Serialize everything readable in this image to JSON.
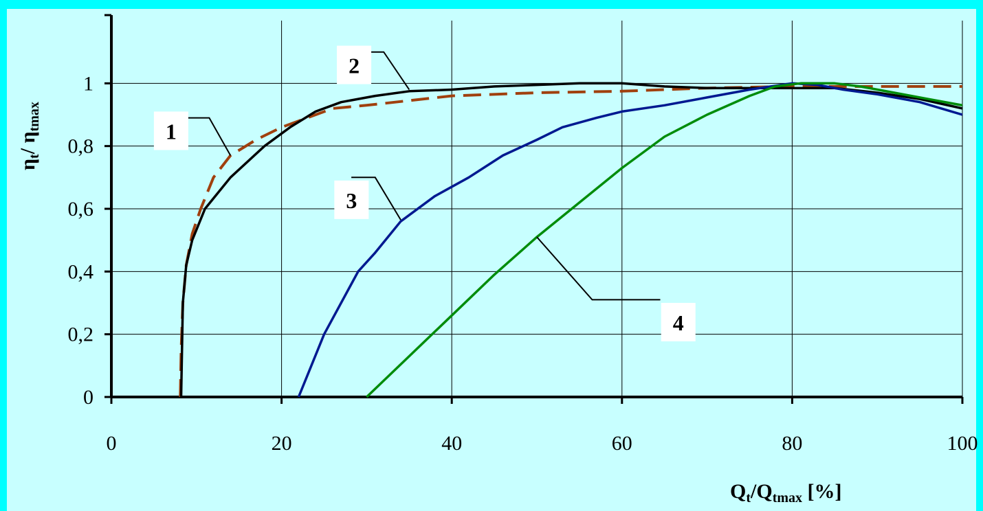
{
  "chart_data": {
    "type": "line",
    "title": "",
    "xlabel": "Q",
    "xlabel_sub": "t",
    "xlabel_mid": "/Q",
    "xlabel_sub2": "tmax",
    "xlabel_tail": " [%]",
    "ylabel": "η",
    "ylabel_sub": "t",
    "ylabel_mid": "/ η",
    "ylabel_sub2": "tmax",
    "xlim": [
      0,
      100
    ],
    "ylim": [
      0,
      1.2
    ],
    "x_ticks": [
      0,
      20,
      40,
      60,
      80,
      100
    ],
    "x_tick_labels": [
      "0",
      "20",
      "40",
      "60",
      "80",
      "100"
    ],
    "y_ticks": [
      0,
      0.2,
      0.4,
      0.6,
      0.8,
      1.0
    ],
    "y_tick_labels": [
      "0",
      "0,2",
      "0,4",
      "0,6",
      "0,8",
      "1"
    ],
    "grid": true,
    "series": [
      {
        "name": "1",
        "color": "#a0400e",
        "dashed": true,
        "points": [
          [
            8.1,
            0
          ],
          [
            8.2,
            0.15
          ],
          [
            8.4,
            0.3
          ],
          [
            8.8,
            0.42
          ],
          [
            9.5,
            0.52
          ],
          [
            10.5,
            0.6
          ],
          [
            12,
            0.7
          ],
          [
            14,
            0.77
          ],
          [
            17,
            0.82
          ],
          [
            20,
            0.86
          ],
          [
            23,
            0.89
          ],
          [
            26,
            0.92
          ],
          [
            30,
            0.93
          ],
          [
            40,
            0.96
          ],
          [
            50,
            0.97
          ],
          [
            60,
            0.975
          ],
          [
            70,
            0.985
          ],
          [
            80,
            0.99
          ],
          [
            90,
            0.99
          ],
          [
            100,
            0.99
          ]
        ]
      },
      {
        "name": "2",
        "color": "#000000",
        "dashed": false,
        "points": [
          [
            8.2,
            0
          ],
          [
            8.4,
            0.3
          ],
          [
            8.8,
            0.42
          ],
          [
            9.5,
            0.5
          ],
          [
            11,
            0.6
          ],
          [
            14,
            0.7
          ],
          [
            18,
            0.8
          ],
          [
            21,
            0.86
          ],
          [
            24,
            0.91
          ],
          [
            27,
            0.94
          ],
          [
            31,
            0.96
          ],
          [
            35,
            0.975
          ],
          [
            40,
            0.98
          ],
          [
            45,
            0.99
          ],
          [
            50,
            0.995
          ],
          [
            55,
            1.0
          ],
          [
            60,
            1.0
          ],
          [
            65,
            0.99
          ],
          [
            70,
            0.985
          ],
          [
            75,
            0.985
          ],
          [
            80,
            0.985
          ],
          [
            85,
            0.985
          ],
          [
            90,
            0.97
          ],
          [
            95,
            0.95
          ],
          [
            100,
            0.92
          ]
        ]
      },
      {
        "name": "3",
        "color": "#001990",
        "dashed": false,
        "points": [
          [
            22,
            0
          ],
          [
            25,
            0.2
          ],
          [
            29,
            0.4
          ],
          [
            31,
            0.46
          ],
          [
            34,
            0.56
          ],
          [
            38,
            0.64
          ],
          [
            42,
            0.7
          ],
          [
            46,
            0.77
          ],
          [
            50,
            0.82
          ],
          [
            53,
            0.86
          ],
          [
            57,
            0.89
          ],
          [
            60,
            0.91
          ],
          [
            65,
            0.93
          ],
          [
            70,
            0.955
          ],
          [
            75,
            0.98
          ],
          [
            80,
            1.0
          ],
          [
            83,
            0.995
          ],
          [
            86,
            0.98
          ],
          [
            90,
            0.965
          ],
          [
            95,
            0.94
          ],
          [
            100,
            0.9
          ]
        ]
      },
      {
        "name": "4",
        "color": "#008c0a",
        "dashed": false,
        "points": [
          [
            30,
            0
          ],
          [
            35,
            0.13
          ],
          [
            40,
            0.26
          ],
          [
            45,
            0.39
          ],
          [
            50,
            0.51
          ],
          [
            55,
            0.62
          ],
          [
            60,
            0.73
          ],
          [
            65,
            0.83
          ],
          [
            70,
            0.9
          ],
          [
            75,
            0.96
          ],
          [
            78,
            0.99
          ],
          [
            81,
            1.0
          ],
          [
            85,
            1.0
          ],
          [
            88,
            0.99
          ],
          [
            92,
            0.97
          ],
          [
            96,
            0.95
          ],
          [
            100,
            0.93
          ]
        ]
      }
    ],
    "annotations": [
      {
        "text": "1",
        "box": [
          5.0,
          0.91
        ],
        "line": [
          [
            7.2,
            0.89
          ],
          [
            11.5,
            0.89
          ],
          [
            14,
            0.77
          ]
        ]
      },
      {
        "text": "2",
        "box": [
          26.5,
          1.12
        ],
        "line": [
          [
            28.5,
            1.1
          ],
          [
            32,
            1.1
          ],
          [
            35,
            0.98
          ]
        ]
      },
      {
        "text": "3",
        "box": [
          26.2,
          0.69
        ],
        "line": [
          [
            28.2,
            0.7
          ],
          [
            31,
            0.7
          ],
          [
            34,
            0.565
          ]
        ]
      },
      {
        "text": "4",
        "box": [
          64.6,
          0.3
        ],
        "line": [
          [
            64.5,
            0.31
          ],
          [
            56.5,
            0.31
          ],
          [
            50,
            0.51
          ]
        ]
      }
    ]
  }
}
